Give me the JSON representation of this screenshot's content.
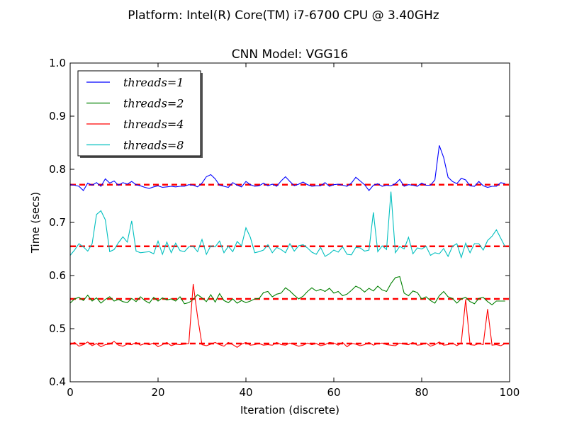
{
  "chart_data": {
    "type": "line",
    "suptitle": "Platform: Intel(R) Core(TM) i7-6700 CPU @ 3.40GHz",
    "title": "CNN Model: VGG16",
    "xlabel": "Iteration (discrete)",
    "ylabel": "Time (secs)",
    "xlim": [
      0,
      100
    ],
    "ylim": [
      0.4,
      1.0
    ],
    "xticks": [
      0,
      20,
      40,
      60,
      80,
      100
    ],
    "ytick_labels": [
      "0.4",
      "0.5",
      "0.6",
      "0.7",
      "0.8",
      "0.9",
      "1.0"
    ],
    "yticks": [
      0.4,
      0.5,
      0.6,
      0.7,
      0.8,
      0.9,
      1.0
    ],
    "legend_location": "top-left",
    "series": [
      {
        "name": "threads = 1",
        "legend_label": "threads=1",
        "color": "#0000ff",
        "mean": 0.771,
        "values": [
          0.771,
          0.77,
          0.768,
          0.76,
          0.774,
          0.77,
          0.775,
          0.768,
          0.782,
          0.774,
          0.778,
          0.77,
          0.775,
          0.772,
          0.777,
          0.771,
          0.769,
          0.766,
          0.764,
          0.767,
          0.769,
          0.766,
          0.767,
          0.768,
          0.767,
          0.768,
          0.768,
          0.771,
          0.77,
          0.767,
          0.774,
          0.786,
          0.79,
          0.782,
          0.77,
          0.768,
          0.766,
          0.775,
          0.77,
          0.767,
          0.777,
          0.771,
          0.768,
          0.769,
          0.774,
          0.769,
          0.772,
          0.768,
          0.778,
          0.786,
          0.777,
          0.769,
          0.772,
          0.776,
          0.771,
          0.768,
          0.769,
          0.769,
          0.775,
          0.768,
          0.771,
          0.772,
          0.77,
          0.768,
          0.774,
          0.785,
          0.778,
          0.771,
          0.76,
          0.77,
          0.773,
          0.768,
          0.77,
          0.769,
          0.773,
          0.781,
          0.768,
          0.771,
          0.77,
          0.768,
          0.774,
          0.77,
          0.77,
          0.78,
          0.845,
          0.822,
          0.785,
          0.777,
          0.773,
          0.783,
          0.78,
          0.769,
          0.768,
          0.777,
          0.769,
          0.766,
          0.768,
          0.768,
          0.775,
          0.773
        ]
      },
      {
        "name": "threads = 2",
        "legend_label": "threads=2",
        "color": "#008000",
        "mean": 0.556,
        "values": [
          0.548,
          0.556,
          0.559,
          0.553,
          0.563,
          0.552,
          0.558,
          0.548,
          0.555,
          0.56,
          0.552,
          0.555,
          0.551,
          0.549,
          0.557,
          0.551,
          0.56,
          0.553,
          0.548,
          0.559,
          0.552,
          0.558,
          0.554,
          0.556,
          0.552,
          0.56,
          0.547,
          0.549,
          0.555,
          0.564,
          0.558,
          0.551,
          0.564,
          0.55,
          0.566,
          0.553,
          0.549,
          0.556,
          0.548,
          0.553,
          0.549,
          0.552,
          0.556,
          0.557,
          0.568,
          0.57,
          0.56,
          0.565,
          0.567,
          0.577,
          0.571,
          0.563,
          0.556,
          0.561,
          0.57,
          0.577,
          0.571,
          0.574,
          0.57,
          0.576,
          0.567,
          0.57,
          0.562,
          0.565,
          0.572,
          0.58,
          0.576,
          0.569,
          0.576,
          0.571,
          0.58,
          0.573,
          0.57,
          0.585,
          0.596,
          0.598,
          0.567,
          0.562,
          0.571,
          0.568,
          0.556,
          0.56,
          0.553,
          0.548,
          0.562,
          0.57,
          0.56,
          0.557,
          0.548,
          0.556,
          0.559,
          0.551,
          0.547,
          0.557,
          0.559,
          0.551,
          0.545,
          0.552,
          0.552,
          0.552
        ]
      },
      {
        "name": "threads = 4",
        "legend_label": "threads=4",
        "color": "#ff0000",
        "mean": 0.472,
        "values": [
          0.47,
          0.474,
          0.467,
          0.47,
          0.475,
          0.468,
          0.472,
          0.466,
          0.47,
          0.471,
          0.476,
          0.469,
          0.467,
          0.471,
          0.47,
          0.474,
          0.469,
          0.472,
          0.47,
          0.473,
          0.466,
          0.47,
          0.474,
          0.468,
          0.471,
          0.47,
          0.471,
          0.472,
          0.584,
          0.522,
          0.47,
          0.468,
          0.471,
          0.474,
          0.47,
          0.467,
          0.474,
          0.47,
          0.465,
          0.471,
          0.474,
          0.469,
          0.47,
          0.472,
          0.469,
          0.47,
          0.469,
          0.474,
          0.47,
          0.469,
          0.473,
          0.47,
          0.467,
          0.469,
          0.473,
          0.47,
          0.472,
          0.468,
          0.47,
          0.474,
          0.473,
          0.469,
          0.474,
          0.466,
          0.472,
          0.471,
          0.468,
          0.47,
          0.474,
          0.469,
          0.472,
          0.473,
          0.47,
          0.469,
          0.468,
          0.473,
          0.471,
          0.47,
          0.474,
          0.469,
          0.47,
          0.473,
          0.467,
          0.47,
          0.475,
          0.469,
          0.47,
          0.473,
          0.468,
          0.473,
          0.555,
          0.47,
          0.469,
          0.472,
          0.47,
          0.537,
          0.469,
          0.47,
          0.468,
          0.472
        ]
      },
      {
        "name": "threads = 8",
        "legend_label": "threads=8",
        "color": "#00bfbf",
        "mean": 0.655,
        "values": [
          0.638,
          0.648,
          0.66,
          0.654,
          0.646,
          0.66,
          0.715,
          0.722,
          0.705,
          0.645,
          0.649,
          0.662,
          0.673,
          0.663,
          0.703,
          0.646,
          0.643,
          0.644,
          0.645,
          0.641,
          0.665,
          0.64,
          0.663,
          0.643,
          0.661,
          0.647,
          0.645,
          0.654,
          0.655,
          0.645,
          0.668,
          0.64,
          0.656,
          0.654,
          0.665,
          0.643,
          0.655,
          0.645,
          0.664,
          0.656,
          0.69,
          0.672,
          0.643,
          0.645,
          0.648,
          0.658,
          0.643,
          0.653,
          0.649,
          0.643,
          0.66,
          0.646,
          0.656,
          0.658,
          0.652,
          0.644,
          0.64,
          0.653,
          0.636,
          0.641,
          0.648,
          0.644,
          0.654,
          0.64,
          0.639,
          0.653,
          0.652,
          0.646,
          0.648,
          0.719,
          0.645,
          0.656,
          0.649,
          0.758,
          0.643,
          0.655,
          0.65,
          0.672,
          0.641,
          0.652,
          0.65,
          0.655,
          0.638,
          0.643,
          0.641,
          0.651,
          0.636,
          0.655,
          0.66,
          0.634,
          0.661,
          0.643,
          0.66,
          0.66,
          0.648,
          0.666,
          0.674,
          0.686,
          0.67,
          0.654
        ]
      }
    ]
  }
}
